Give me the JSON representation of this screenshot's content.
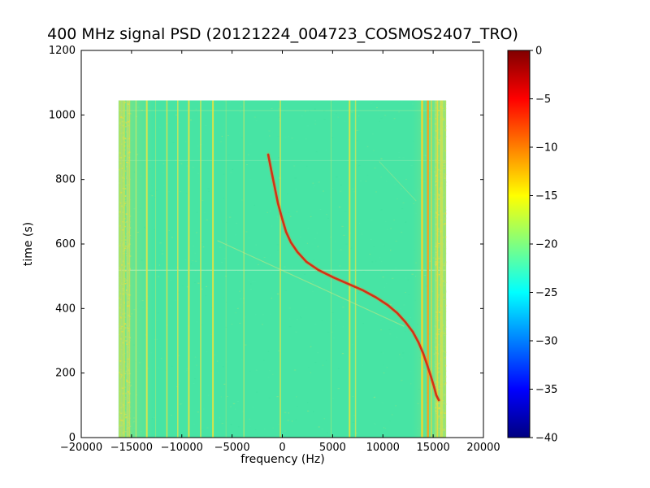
{
  "chart_data": {
    "type": "heatmap",
    "subtype": "spectrogram",
    "title": "400 MHz signal PSD (20121224_004723_COSMOS2407_TRO)",
    "xlabel": "frequency (Hz)",
    "ylabel": "time (s)",
    "xlim": [
      -20000,
      20000
    ],
    "ylim": [
      0,
      1200
    ],
    "x_ticks": [
      -20000,
      -15000,
      -10000,
      -5000,
      0,
      5000,
      10000,
      15000,
      20000
    ],
    "x_tick_labels": [
      "−20000",
      "−15000",
      "−10000",
      "−5000",
      "0",
      "5000",
      "10000",
      "15000",
      "20000"
    ],
    "y_ticks": [
      0,
      200,
      400,
      600,
      800,
      1000,
      1200
    ],
    "y_tick_labels": [
      "0",
      "200",
      "400",
      "600",
      "800",
      "1000",
      "1200"
    ],
    "grid": false,
    "legend": "none",
    "data_extent": {
      "freq": [
        -16300,
        16300
      ],
      "time": [
        0,
        1045
      ]
    },
    "background": {
      "level_db": -23,
      "color": "#47e4a4"
    },
    "edge_fade": {
      "color": "#c8e65a",
      "max_opacity": 0.45,
      "left_range": [
        -16300,
        -12900
      ],
      "right_range": [
        12900,
        16300
      ]
    },
    "edge_bands": [
      {
        "freq_range": [
          -16300,
          -15200
        ],
        "stripe_count": 10,
        "dot_count": 450
      },
      {
        "freq_range": [
          15100,
          16300
        ],
        "stripe_count": 10,
        "dot_count": 450
      }
    ],
    "edge_band_colors": [
      "#cbe45a",
      "#b6e070",
      "#ecde3e",
      "#a9dd80"
    ],
    "speckle": {
      "seed": 20121224,
      "count": 700,
      "colors": [
        "#55e8ae",
        "#3bdf9c",
        "#65eaa8",
        "#a8e87e",
        "#d8e860"
      ],
      "opacity": 0.4
    },
    "horizontal_stripes": [
      {
        "time": 520,
        "color": "#eaf7d0",
        "opacity": 0.55,
        "width": 1
      },
      {
        "time": 860,
        "color": "#d8f0c0",
        "opacity": 0.25,
        "width": 1
      },
      {
        "time": 1015,
        "color": "#d8ee9a",
        "opacity": 0.3,
        "width": 1
      }
    ],
    "rfi_lines": [
      {
        "freq": -15750,
        "width": 2,
        "color": "#cde452",
        "opacity": 0.9
      },
      {
        "freq": -14550,
        "width": 1.5,
        "color": "#d6e85e",
        "opacity": 0.65
      },
      {
        "freq": -13480,
        "width": 2,
        "color": "#e4e648",
        "opacity": 0.9
      },
      {
        "freq": -12600,
        "width": 1,
        "color": "#d8e860",
        "opacity": 0.45
      },
      {
        "freq": -11480,
        "width": 1.5,
        "color": "#e4e648",
        "opacity": 0.85
      },
      {
        "freq": -10400,
        "width": 1.5,
        "color": "#e0e64e",
        "opacity": 0.8
      },
      {
        "freq": -9300,
        "width": 2,
        "color": "#e6e440",
        "opacity": 0.9
      },
      {
        "freq": -8120,
        "width": 1.5,
        "color": "#e0e64e",
        "opacity": 0.8
      },
      {
        "freq": -6900,
        "width": 2,
        "color": "#e6e440",
        "opacity": 0.9
      },
      {
        "freq": -5600,
        "width": 1,
        "color": "#d8e860",
        "opacity": 0.35
      },
      {
        "freq": -3820,
        "width": 1.5,
        "color": "#dee85c",
        "opacity": 0.55
      },
      {
        "freq": -200,
        "width": 1.5,
        "color": "#e4e648",
        "opacity": 0.8
      },
      {
        "freq": 4850,
        "width": 1,
        "color": "#d8e860",
        "opacity": 0.4
      },
      {
        "freq": 6690,
        "width": 2,
        "color": "#e6e440",
        "opacity": 0.9
      },
      {
        "freq": 7280,
        "width": 1.5,
        "color": "#e0e64e",
        "opacity": 0.7
      },
      {
        "freq": 13900,
        "width": 2.5,
        "color": "#f2d62e",
        "opacity": 0.95
      },
      {
        "freq": 14480,
        "width": 2.5,
        "color": "#f5a21e",
        "opacity": 0.95
      },
      {
        "freq": 14820,
        "width": 1.5,
        "color": "#ecd83a",
        "opacity": 0.8
      },
      {
        "freq": 15430,
        "width": 2,
        "color": "#e8de3c",
        "opacity": 0.9
      },
      {
        "freq": 15880,
        "width": 2,
        "color": "#cde452",
        "opacity": 0.8
      }
    ],
    "faint_tracks": [
      {
        "points": [
          [
            345,
            12080
          ],
          [
            610,
            -6420
          ]
        ],
        "color": "#d2e87e",
        "width": 1.2,
        "opacity": 0.5
      },
      {
        "points": [
          [
            734,
            13290
          ],
          [
            855,
            9660
          ]
        ],
        "color": "#d2e87e",
        "width": 1,
        "opacity": 0.35
      }
    ],
    "doppler_track": {
      "color": "#d63014",
      "halo_color": "#f08030",
      "width": 2.6,
      "points": [
        [
          116,
          15560
        ],
        [
          131,
          15310
        ],
        [
          159,
          15070
        ],
        [
          192,
          14750
        ],
        [
          224,
          14420
        ],
        [
          260,
          14020
        ],
        [
          295,
          13540
        ],
        [
          328,
          12970
        ],
        [
          358,
          12240
        ],
        [
          386,
          11430
        ],
        [
          411,
          10470
        ],
        [
          434,
          9330
        ],
        [
          456,
          8040
        ],
        [
          477,
          6510
        ],
        [
          497,
          5050
        ],
        [
          519,
          3600
        ],
        [
          545,
          2380
        ],
        [
          575,
          1500
        ],
        [
          605,
          850
        ],
        [
          638,
          360
        ],
        [
          681,
          -40
        ],
        [
          726,
          -440
        ],
        [
          777,
          -770
        ],
        [
          827,
          -1090
        ],
        [
          877,
          -1410
        ]
      ]
    },
    "colorbar": {
      "lim": [
        -40,
        0
      ],
      "ticks": [
        0,
        -5,
        -10,
        -15,
        -20,
        -25,
        -30,
        -35,
        -40
      ],
      "tick_labels": [
        "0",
        "−5",
        "−10",
        "−15",
        "−20",
        "−25",
        "−30",
        "−35",
        "−40"
      ],
      "colormap": "jet",
      "stops": [
        {
          "pos": 0.0,
          "color": "#000080"
        },
        {
          "pos": 0.125,
          "color": "#0000ff"
        },
        {
          "pos": 0.375,
          "color": "#00ffff"
        },
        {
          "pos": 0.625,
          "color": "#ffff00"
        },
        {
          "pos": 0.875,
          "color": "#ff0000"
        },
        {
          "pos": 1.0,
          "color": "#800000"
        }
      ]
    }
  }
}
